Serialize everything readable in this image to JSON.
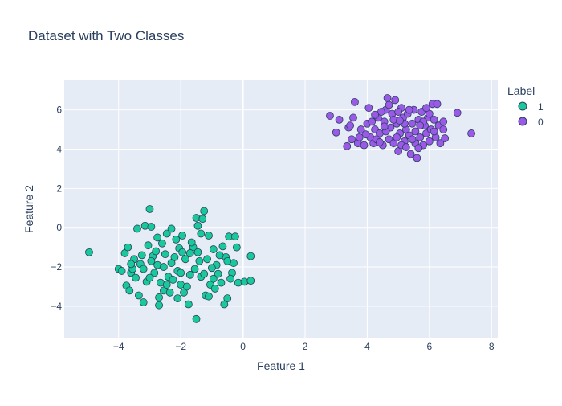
{
  "chart_data": {
    "type": "scatter",
    "title": "Dataset with Two Classes",
    "xlabel": "Feature 1",
    "ylabel": "Feature 2",
    "xlim": [
      -5.75,
      8.2
    ],
    "ylim": [
      -5.6,
      7.5
    ],
    "x_ticks": [
      -4,
      -2,
      0,
      2,
      4,
      6,
      8
    ],
    "y_ticks": [
      -4,
      -2,
      0,
      2,
      4,
      6
    ],
    "x_tick_labels": [
      "−4",
      "−2",
      "0",
      "2",
      "4",
      "6",
      "8"
    ],
    "y_tick_labels": [
      "−4",
      "−2",
      "0",
      "2",
      "4",
      "6"
    ],
    "grid": true,
    "legend": {
      "title": "Label",
      "placement": "right"
    },
    "colors": {
      "plot_bg": "#e5ecf6",
      "grid": "#ffffff",
      "text": "#2a3f5f",
      "marker_edge": "#2a3f5f"
    },
    "series": [
      {
        "name": "1",
        "color": "#19c99a",
        "points": [
          [
            -4.95,
            -1.25
          ],
          [
            -4.0,
            -2.1
          ],
          [
            -3.8,
            -1.3
          ],
          [
            -3.7,
            -1.0
          ],
          [
            -3.6,
            -2.3
          ],
          [
            -3.75,
            -2.95
          ],
          [
            -3.65,
            -3.2
          ],
          [
            -3.45,
            -2.55
          ],
          [
            -3.3,
            -1.85
          ],
          [
            -3.2,
            -2.1
          ],
          [
            -3.4,
            -0.05
          ],
          [
            -3.15,
            0.1
          ],
          [
            -3.0,
            0.95
          ],
          [
            -2.95,
            0.05
          ],
          [
            -3.05,
            -0.9
          ],
          [
            -2.9,
            -1.45
          ],
          [
            -3.1,
            -2.75
          ],
          [
            -3.2,
            -3.8
          ],
          [
            -2.7,
            -3.95
          ],
          [
            -2.55,
            -3.2
          ],
          [
            -2.4,
            -2.5
          ],
          [
            -2.75,
            -1.9
          ],
          [
            -2.6,
            -0.8
          ],
          [
            -2.45,
            -0.3
          ],
          [
            -2.3,
            -0.05
          ],
          [
            -2.2,
            -1.5
          ],
          [
            -2.1,
            -2.2
          ],
          [
            -2.0,
            -2.9
          ],
          [
            -1.9,
            -3.3
          ],
          [
            -1.75,
            -3.9
          ],
          [
            -1.5,
            -4.65
          ],
          [
            -1.45,
            0.1
          ],
          [
            -1.5,
            0.5
          ],
          [
            -1.25,
            0.85
          ],
          [
            -1.3,
            0.45
          ],
          [
            -1.1,
            -0.4
          ],
          [
            -0.95,
            -1.1
          ],
          [
            -0.85,
            -1.9
          ],
          [
            -0.7,
            -2.8
          ],
          [
            -0.6,
            -3.9
          ],
          [
            -0.5,
            -3.6
          ],
          [
            -0.45,
            -0.45
          ],
          [
            -0.25,
            -0.45
          ],
          [
            -0.2,
            -1.0
          ],
          [
            -0.3,
            -1.8
          ],
          [
            -0.15,
            -2.8
          ],
          [
            0.05,
            -2.75
          ],
          [
            0.25,
            -1.45
          ],
          [
            0.25,
            -2.7
          ],
          [
            -0.35,
            -2.3
          ],
          [
            -0.55,
            -1.5
          ],
          [
            -0.8,
            -2.35
          ],
          [
            -1.05,
            -2.9
          ],
          [
            -1.2,
            -3.45
          ],
          [
            -1.35,
            -2.5
          ],
          [
            -1.4,
            -1.7
          ],
          [
            -1.6,
            -1.0
          ],
          [
            -1.7,
            -2.4
          ],
          [
            -1.85,
            -1.6
          ],
          [
            -2.05,
            -1.05
          ],
          [
            -2.25,
            -2.65
          ],
          [
            -2.35,
            -3.3
          ],
          [
            -2.5,
            -1.35
          ],
          [
            -2.65,
            -2.8
          ],
          [
            -2.85,
            -2.3
          ],
          [
            -2.95,
            -1.7
          ],
          [
            -3.25,
            -1.4
          ],
          [
            -3.5,
            -1.6
          ],
          [
            -3.55,
            -2.1
          ],
          [
            -3.9,
            -2.2
          ],
          [
            -2.15,
            -0.6
          ],
          [
            -1.95,
            -0.4
          ],
          [
            -1.65,
            -0.75
          ],
          [
            -1.45,
            -1.25
          ],
          [
            -1.15,
            -1.6
          ],
          [
            -1.0,
            -2.05
          ],
          [
            -0.75,
            -1.4
          ],
          [
            -0.65,
            -0.95
          ],
          [
            -2.55,
            -2.0
          ],
          [
            -2.8,
            -1.2
          ],
          [
            -3.0,
            -2.55
          ],
          [
            -2.45,
            -2.9
          ],
          [
            -2.0,
            -2.3
          ],
          [
            -1.8,
            -3.0
          ],
          [
            -1.55,
            -2.1
          ],
          [
            -1.25,
            -2.35
          ],
          [
            -0.9,
            -3.1
          ],
          [
            -0.4,
            -2.6
          ],
          [
            -3.35,
            -3.45
          ],
          [
            -2.7,
            -3.55
          ],
          [
            -1.1,
            -3.5
          ],
          [
            -1.95,
            -1.25
          ],
          [
            -2.3,
            -1.8
          ],
          [
            -2.75,
            -0.5
          ],
          [
            -1.35,
            -0.3
          ],
          [
            -0.5,
            -1.7
          ],
          [
            -3.6,
            -1.85
          ],
          [
            -2.1,
            -3.6
          ],
          [
            -0.95,
            -2.6
          ],
          [
            -1.7,
            -1.3
          ]
        ]
      },
      {
        "name": "0",
        "color": "#9b59e8",
        "points": [
          [
            2.8,
            5.7
          ],
          [
            3.0,
            4.85
          ],
          [
            3.1,
            5.5
          ],
          [
            3.35,
            4.15
          ],
          [
            3.4,
            5.1
          ],
          [
            3.5,
            4.5
          ],
          [
            3.55,
            5.6
          ],
          [
            3.6,
            6.4
          ],
          [
            3.7,
            4.3
          ],
          [
            3.8,
            5.0
          ],
          [
            3.9,
            4.2
          ],
          [
            4.0,
            5.3
          ],
          [
            4.05,
            6.1
          ],
          [
            4.1,
            4.6
          ],
          [
            4.2,
            4.3
          ],
          [
            4.25,
            5.0
          ],
          [
            4.35,
            5.6
          ],
          [
            4.4,
            4.8
          ],
          [
            4.5,
            4.2
          ],
          [
            4.55,
            5.4
          ],
          [
            4.6,
            6.0
          ],
          [
            4.65,
            6.6
          ],
          [
            4.7,
            4.5
          ],
          [
            4.75,
            5.1
          ],
          [
            4.8,
            5.8
          ],
          [
            4.85,
            4.3
          ],
          [
            4.9,
            6.5
          ],
          [
            4.95,
            5.3
          ],
          [
            5.0,
            3.9
          ],
          [
            5.05,
            4.8
          ],
          [
            5.1,
            6.1
          ],
          [
            5.15,
            5.6
          ],
          [
            5.2,
            4.4
          ],
          [
            5.25,
            5.0
          ],
          [
            5.3,
            5.8
          ],
          [
            5.35,
            4.7
          ],
          [
            5.4,
            3.75
          ],
          [
            5.45,
            5.3
          ],
          [
            5.5,
            6.0
          ],
          [
            5.55,
            4.9
          ],
          [
            5.6,
            3.55
          ],
          [
            5.65,
            5.5
          ],
          [
            5.7,
            4.6
          ],
          [
            5.75,
            5.9
          ],
          [
            5.8,
            4.2
          ],
          [
            5.85,
            5.2
          ],
          [
            5.9,
            4.8
          ],
          [
            5.95,
            5.6
          ],
          [
            6.0,
            4.4
          ],
          [
            6.05,
            5.0
          ],
          [
            6.1,
            6.3
          ],
          [
            6.15,
            5.5
          ],
          [
            6.2,
            4.6
          ],
          [
            6.25,
            6.3
          ],
          [
            6.3,
            5.2
          ],
          [
            6.35,
            4.3
          ],
          [
            6.45,
            5.0
          ],
          [
            6.5,
            4.55
          ],
          [
            6.45,
            5.4
          ],
          [
            6.9,
            5.85
          ],
          [
            7.35,
            4.8
          ],
          [
            3.45,
            5.2
          ],
          [
            3.95,
            4.75
          ],
          [
            4.45,
            5.9
          ],
          [
            4.15,
            5.4
          ],
          [
            4.6,
            4.9
          ],
          [
            4.3,
            4.5
          ],
          [
            5.1,
            4.2
          ],
          [
            5.35,
            6.0
          ],
          [
            5.55,
            4.3
          ],
          [
            5.8,
            5.4
          ],
          [
            6.0,
            5.8
          ],
          [
            5.25,
            4.1
          ],
          [
            4.85,
            5.5
          ],
          [
            4.7,
            6.25
          ],
          [
            5.0,
            5.9
          ],
          [
            5.45,
            4.5
          ],
          [
            5.65,
            4.05
          ],
          [
            6.15,
            4.9
          ],
          [
            4.4,
            4.35
          ],
          [
            3.75,
            4.6
          ],
          [
            4.95,
            4.6
          ],
          [
            5.2,
            5.3
          ],
          [
            5.7,
            5.2
          ],
          [
            4.55,
            5.15
          ],
          [
            5.9,
            6.1
          ],
          [
            5.05,
            5.45
          ],
          [
            4.25,
            5.75
          ]
        ]
      }
    ]
  }
}
